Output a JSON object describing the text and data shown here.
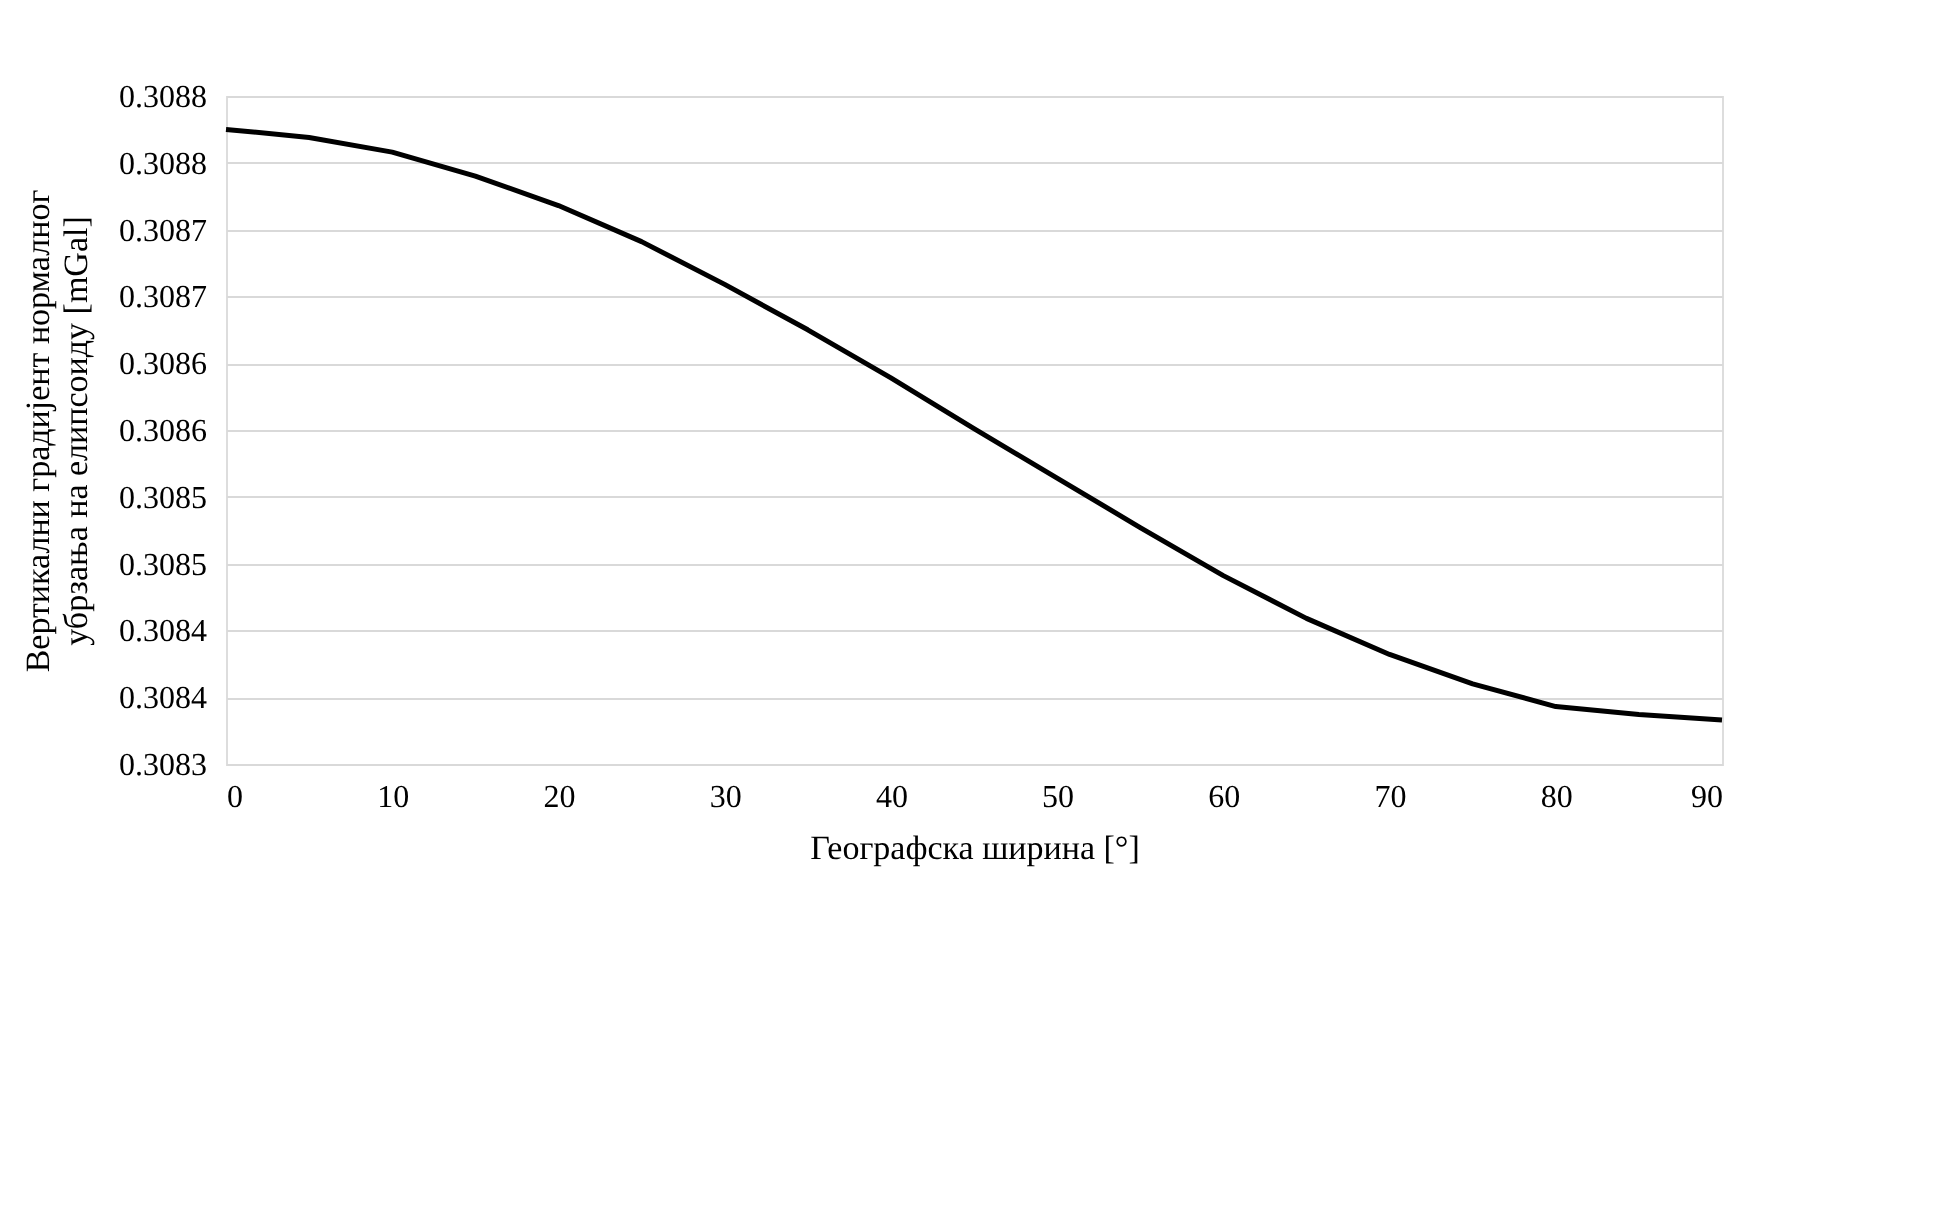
{
  "chart_data": {
    "type": "line",
    "xlabel": "Географска ширина [°]",
    "ylabel": "Вертикални градијент нормалног\nубрзања на елипсоиду [mGal]",
    "x": [
      0,
      5,
      10,
      15,
      20,
      25,
      30,
      35,
      40,
      45,
      50,
      55,
      60,
      65,
      70,
      75,
      80,
      85,
      90
    ],
    "series": [
      {
        "color": "#000000",
        "values": [
          0.308775,
          0.308769,
          0.308758,
          0.30874,
          0.308718,
          0.308691,
          0.308659,
          0.308625,
          0.308589,
          0.308551,
          0.308514,
          0.308477,
          0.308441,
          0.308409,
          0.308382,
          0.30836,
          0.308343,
          0.308337,
          0.308333
        ]
      }
    ],
    "xlim": [
      0,
      90
    ],
    "xticks": [
      0,
      10,
      20,
      30,
      40,
      50,
      60,
      70,
      80,
      90
    ],
    "ylim": [
      0.3083,
      0.3088
    ],
    "yticks": [
      {
        "value": 0.3083,
        "label": "0.3083"
      },
      {
        "value": 0.30835,
        "label": "0.3084"
      },
      {
        "value": 0.3084,
        "label": "0.3084"
      },
      {
        "value": 0.30845,
        "label": "0.3085"
      },
      {
        "value": 0.3085,
        "label": "0.3085"
      },
      {
        "value": 0.30855,
        "label": "0.3086"
      },
      {
        "value": 0.3086,
        "label": "0.3086"
      },
      {
        "value": 0.30865,
        "label": "0.3087"
      },
      {
        "value": 0.3087,
        "label": "0.3087"
      },
      {
        "value": 0.30875,
        "label": "0.3088"
      },
      {
        "value": 0.3088,
        "label": "0.3088"
      }
    ],
    "grid": "y",
    "marker": "none",
    "line_style": "solid"
  }
}
